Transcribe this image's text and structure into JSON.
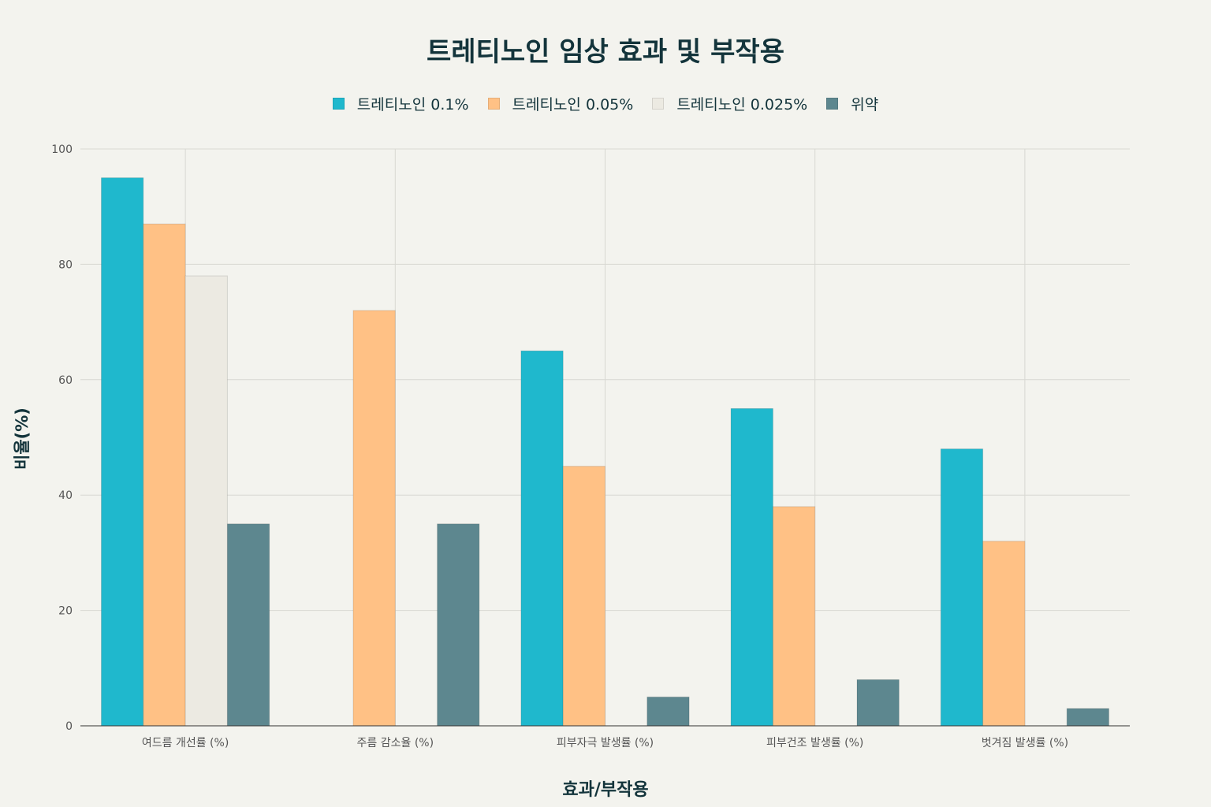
{
  "chart_data": {
    "type": "bar",
    "title": "트레티노인 임상 효과 및 부작용",
    "xlabel": "효과/부작용",
    "ylabel": "비율(%)",
    "ylim": [
      0,
      100
    ],
    "yticks": [
      0,
      20,
      40,
      60,
      80,
      100
    ],
    "grid": true,
    "legend_position": "top",
    "categories": [
      "여드름 개선률 (%)",
      "주름 감소율 (%)",
      "피부자극 발생률 (%)",
      "피부건조 발생률 (%)",
      "벗겨짐 발생률 (%)"
    ],
    "series": [
      {
        "name": "트레티노인 0.1%",
        "color": "#1fb8cd",
        "values": [
          95,
          null,
          65,
          55,
          48
        ]
      },
      {
        "name": "트레티노인 0.05%",
        "color": "#ffc185",
        "values": [
          87,
          72,
          45,
          38,
          32
        ]
      },
      {
        "name": "트레티노인 0.025%",
        "color": "#eceae2",
        "values": [
          78,
          null,
          null,
          null,
          null
        ]
      },
      {
        "name": "위약",
        "color": "#5d878f",
        "values": [
          35,
          35,
          5,
          8,
          3
        ]
      }
    ]
  }
}
